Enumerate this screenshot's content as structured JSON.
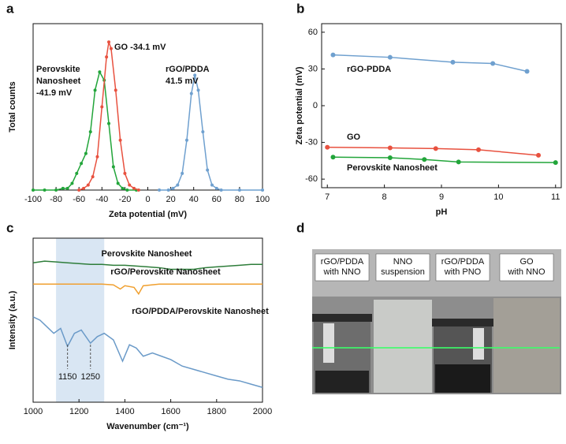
{
  "chart_data": [
    {
      "type": "line",
      "panel": "a",
      "xlabel": "Zeta potential (mV)",
      "ylabel": "Total counts",
      "xlim": [
        -100,
        100
      ],
      "xticks": [
        -100,
        -80,
        -60,
        -40,
        -20,
        0,
        20,
        40,
        60,
        80,
        100
      ],
      "ylim": [
        0,
        100
      ],
      "markers": true,
      "series": [
        {
          "color": "#22a53a",
          "x": [
            -100,
            -90,
            -80,
            -74,
            -70,
            -66,
            -62,
            -58,
            -54,
            -50,
            -46,
            -42,
            -38,
            -34,
            -30,
            -26,
            -22,
            -18,
            -10
          ],
          "values": [
            0,
            0,
            0,
            1,
            1,
            4,
            10,
            16,
            22,
            35,
            60,
            71,
            66,
            40,
            14,
            4,
            1,
            0,
            0
          ]
        },
        {
          "color": "#e8513f",
          "x": [
            -60,
            -56,
            -52,
            -48,
            -44,
            -40,
            -36,
            -34,
            -32,
            -28,
            -24,
            -20,
            -16,
            -12,
            -8
          ],
          "values": [
            0,
            1,
            3,
            8,
            20,
            50,
            80,
            89,
            85,
            60,
            30,
            10,
            3,
            1,
            0
          ]
        },
        {
          "color": "#6fa0cf",
          "x": [
            10,
            18,
            22,
            26,
            30,
            34,
            38,
            41,
            44,
            48,
            52,
            56,
            60,
            64,
            80,
            100
          ],
          "values": [
            0,
            0,
            1,
            3,
            10,
            30,
            58,
            69,
            60,
            35,
            12,
            3,
            1,
            0,
            0,
            0
          ]
        }
      ],
      "annotations": [
        {
          "lines": [
            "Perovskite",
            "Nanosheet",
            "-41.9 mV"
          ],
          "color": "#22a53a"
        },
        {
          "lines": [
            "GO -34.1 mV"
          ],
          "color": "#e8513f"
        },
        {
          "lines": [
            "rGO/PDDA",
            "41.5 mV"
          ],
          "color": "#6fa0cf"
        }
      ]
    },
    {
      "type": "line",
      "panel": "b",
      "xlabel": "pH",
      "ylabel": "Zeta potential (mV)",
      "xlim": [
        6.9,
        11.1
      ],
      "xticks": [
        7,
        8,
        9,
        10,
        11
      ],
      "ylim": [
        -67,
        67
      ],
      "yticks": [
        -60,
        -30,
        0,
        30,
        60
      ],
      "markers": true,
      "series": [
        {
          "name": "rGO-PDDA",
          "color": "#6fa0cf",
          "x": [
            7.1,
            8.1,
            9.2,
            9.9,
            10.5
          ],
          "values": [
            41.5,
            39.5,
            35.5,
            34.5,
            28
          ]
        },
        {
          "name": "GO",
          "color": "#e8513f",
          "x": [
            7.0,
            8.1,
            8.9,
            9.65,
            10.7
          ],
          "values": [
            -34,
            -34.5,
            -35,
            -36,
            -40.5
          ]
        },
        {
          "name": "Perovskite Nanosheet",
          "color": "#22a53a",
          "x": [
            7.1,
            8.1,
            8.7,
            9.3,
            11.0
          ],
          "values": [
            -42,
            -42.5,
            -44,
            -46,
            -46.5
          ]
        }
      ]
    },
    {
      "type": "line",
      "panel": "c",
      "xlabel": "Wavenumber (cm⁻¹)",
      "ylabel": "Intensity (a.u.)",
      "xlim": [
        1000,
        2000
      ],
      "xticks": [
        1000,
        1200,
        1400,
        1600,
        1800,
        2000
      ],
      "ylim": [
        0,
        100
      ],
      "markers": false,
      "shade": [
        1100,
        1310
      ],
      "series": [
        {
          "name": "Perovskite Nanosheet",
          "color": "#2e7d3a",
          "x": [
            1000,
            1050,
            1100,
            1150,
            1200,
            1250,
            1300,
            1350,
            1400,
            1450,
            1500,
            1550,
            1600,
            1650,
            1700,
            1750,
            1800,
            1850,
            1900,
            1950,
            2000
          ],
          "values": [
            85,
            86,
            85.5,
            85,
            84.5,
            84,
            84,
            83.5,
            83.5,
            83,
            82.5,
            82,
            81,
            81,
            81,
            82,
            82.5,
            83,
            83.5,
            84,
            84
          ]
        },
        {
          "name": "rGO/Perovskite Nanosheet",
          "color": "#f0a030",
          "x": [
            1000,
            1100,
            1200,
            1300,
            1350,
            1380,
            1400,
            1440,
            1460,
            1480,
            1550,
            1650,
            1800,
            2000
          ],
          "values": [
            72,
            72,
            72,
            72,
            71.5,
            69,
            71,
            70,
            66,
            71,
            72,
            72,
            72,
            72
          ]
        },
        {
          "name": "rGO/PDDA/Perovskite Nanosheet",
          "color": "#6a9ac8",
          "x": [
            1000,
            1030,
            1060,
            1090,
            1120,
            1150,
            1180,
            1210,
            1250,
            1280,
            1310,
            1350,
            1390,
            1420,
            1450,
            1480,
            1520,
            1560,
            1600,
            1650,
            1700,
            1750,
            1800,
            1850,
            1900,
            1950,
            2000
          ],
          "values": [
            52,
            50,
            46,
            42,
            45,
            34,
            42,
            44,
            36,
            40,
            42,
            38,
            25,
            35,
            33,
            28,
            30,
            28,
            26,
            22,
            20,
            18,
            16,
            14,
            13,
            11,
            9
          ]
        }
      ],
      "annotations": [
        {
          "text": "1150",
          "x": 1150
        },
        {
          "text": "1250",
          "x": 1250
        }
      ]
    }
  ],
  "photo": {
    "panel": "d",
    "labels": [
      [
        "rGO/PDDA",
        "with NNO"
      ],
      [
        "NNO",
        "suspension"
      ],
      [
        "rGO/PDDA",
        "with PNO"
      ],
      [
        "GO",
        "with NNO"
      ]
    ]
  }
}
